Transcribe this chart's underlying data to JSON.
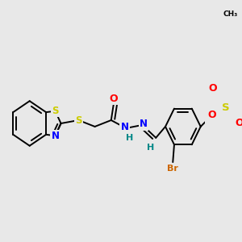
{
  "bg_color": "#e8e8e8",
  "bond_color": "#000000",
  "bond_width": 1.4,
  "atom_colors": {
    "S": "#cccc00",
    "N": "#0000ff",
    "O": "#ff0000",
    "Br": "#cc6600",
    "C": "#000000",
    "H": "#008888"
  },
  "font_size": 7.0,
  "figsize": [
    3.0,
    3.0
  ],
  "dpi": 100
}
